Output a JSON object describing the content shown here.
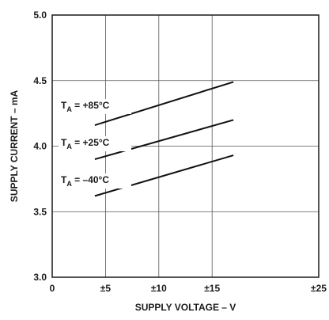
{
  "chart_data": {
    "type": "line",
    "xlabel": "SUPPLY VOLTAGE – V",
    "ylabel": "SUPPLY CURRENT – mA",
    "xlim": [
      0,
      25
    ],
    "ylim": [
      3.0,
      5.0
    ],
    "x_ticks": [
      0,
      5,
      10,
      15,
      25
    ],
    "x_tick_labels": [
      "0",
      "±5",
      "±10",
      "±15",
      "±25"
    ],
    "y_ticks": [
      3.0,
      3.5,
      4.0,
      4.5,
      5.0
    ],
    "y_tick_labels": [
      "3.0",
      "3.5",
      "4.0",
      "4.5",
      "5.0"
    ],
    "grid": true,
    "legend": "inline labels",
    "series": [
      {
        "name": "+85°C",
        "label_prefix": "T",
        "label_sub": "A",
        "label_rest": " = +85°C",
        "x": [
          4,
          17
        ],
        "values": [
          4.16,
          4.49
        ]
      },
      {
        "name": "+25°C",
        "label_prefix": "T",
        "label_sub": "A",
        "label_rest": " = +25°C",
        "x": [
          4,
          17
        ],
        "values": [
          3.9,
          4.2
        ]
      },
      {
        "name": "–40°C",
        "label_prefix": "T",
        "label_sub": "A",
        "label_rest": " = –40°C",
        "x": [
          4,
          17
        ],
        "values": [
          3.62,
          3.93
        ]
      }
    ]
  }
}
